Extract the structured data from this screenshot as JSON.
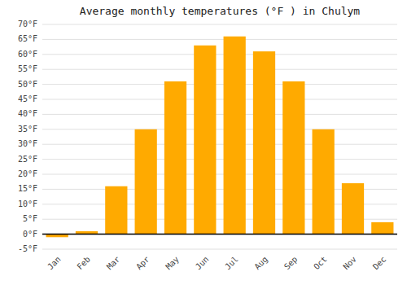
{
  "chart_data": {
    "type": "bar",
    "title": "Average monthly temperatures (°F ) in Chulym",
    "categories": [
      "Jan",
      "Feb",
      "Mar",
      "Apr",
      "May",
      "Jun",
      "Jul",
      "Aug",
      "Sep",
      "Oct",
      "Nov",
      "Dec"
    ],
    "values": [
      -1,
      1,
      16,
      35,
      51,
      63,
      66,
      61,
      51,
      35,
      17,
      4
    ],
    "color": "#FFAA00",
    "ylim": [
      -5,
      70
    ],
    "yticks": [
      {
        "value": -5,
        "label": "-5°F"
      },
      {
        "value": 0,
        "label": "0°F"
      },
      {
        "value": 5,
        "label": "5°F"
      },
      {
        "value": 10,
        "label": "10°F"
      },
      {
        "value": 15,
        "label": "15°F"
      },
      {
        "value": 20,
        "label": "20°F"
      },
      {
        "value": 25,
        "label": "25°F"
      },
      {
        "value": 30,
        "label": "30°F"
      },
      {
        "value": 35,
        "label": "35°F"
      },
      {
        "value": 40,
        "label": "40°F"
      },
      {
        "value": 45,
        "label": "45°F"
      },
      {
        "value": 50,
        "label": "50°F"
      },
      {
        "value": 55,
        "label": "55°F"
      },
      {
        "value": 60,
        "label": "60°F"
      },
      {
        "value": 65,
        "label": "65°F"
      },
      {
        "value": 70,
        "label": "70°F"
      }
    ],
    "grid": true
  }
}
